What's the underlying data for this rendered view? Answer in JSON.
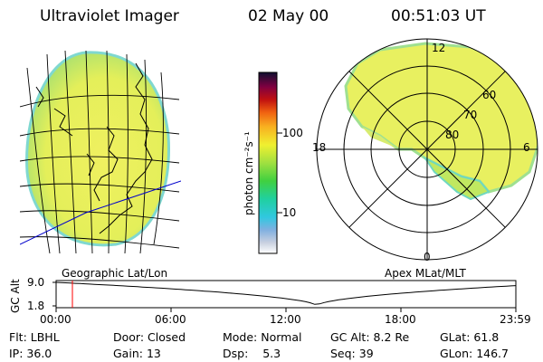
{
  "header": {
    "instrument": "Ultraviolet Imager",
    "date": "02 May 00",
    "time": "00:51:03 UT"
  },
  "colorbar": {
    "unit_label": "photon cm⁻²s⁻¹",
    "ticks": [
      {
        "label": "100",
        "value": 100
      },
      {
        "label": "10",
        "value": 10
      }
    ]
  },
  "geo_panel": {
    "label": "Geographic Lat/Lon"
  },
  "polar_panel": {
    "label": "Apex MLat/MLT",
    "mlt_labels": [
      "12",
      "18",
      "6",
      "0"
    ],
    "mlat_labels": [
      "60",
      "70",
      "80"
    ]
  },
  "timeline": {
    "ylabel": "GC Alt",
    "ytick_top": "9.0",
    "ytick_bottom": "1.8",
    "xticks": [
      "00:00",
      "06:00",
      "12:00",
      "18:00",
      "23:59"
    ],
    "marker_time": "00:51",
    "marker_color": "#ff0000"
  },
  "info": {
    "row1": [
      {
        "key": "Flt:",
        "value": "LBHL"
      },
      {
        "key": "Door:",
        "value": "Closed"
      },
      {
        "key": "Mode:",
        "value": "Normal"
      },
      {
        "key": "GC Alt:",
        "value": "8.2 Re"
      },
      {
        "key": "GLat:",
        "value": "61.8"
      }
    ],
    "row2": [
      {
        "key": "IP:",
        "value": "36.0"
      },
      {
        "key": "Gain:",
        "value": "13"
      },
      {
        "key": "Dsp:",
        "value": "5.3"
      },
      {
        "key": "Seq:",
        "value": "39"
      },
      {
        "key": "GLon:",
        "value": "146.7"
      }
    ]
  }
}
